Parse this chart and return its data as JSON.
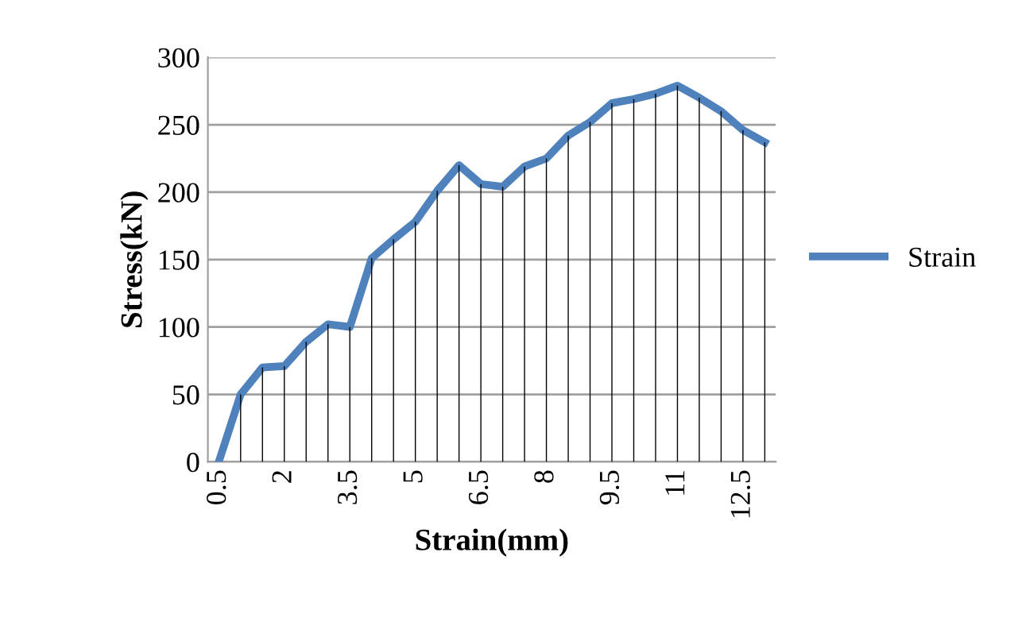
{
  "chart_data": {
    "type": "line",
    "xlabel": "Strain(mm)",
    "ylabel": "Stress(kN)",
    "categories": [
      "0.5",
      null,
      null,
      "2",
      null,
      null,
      "3.5",
      null,
      null,
      "5",
      null,
      null,
      "6.5",
      null,
      null,
      "8",
      null,
      null,
      "9.5",
      null,
      null,
      "11",
      null,
      null,
      "12.5",
      null
    ],
    "series": [
      {
        "type": "bar",
        "color": "#000000",
        "values": [
          0,
          50,
          70,
          71,
          89,
          102,
          100,
          151,
          165,
          178,
          201,
          220,
          206,
          204,
          219,
          225,
          242,
          252,
          266,
          269,
          273,
          279,
          270,
          260,
          246,
          237
        ]
      },
      {
        "name": "Strain",
        "color": "#4f81bd",
        "values": [
          0,
          50,
          70,
          71,
          89,
          102,
          100,
          151,
          165,
          178,
          201,
          220,
          206,
          204,
          219,
          225,
          242,
          252,
          266,
          269,
          273,
          279,
          270,
          260,
          246,
          237
        ]
      }
    ],
    "ylim": [
      0,
      300
    ],
    "yticks": [
      0,
      50,
      100,
      150,
      200,
      250,
      300
    ],
    "grid": "y",
    "legend": "right",
    "marker": "none",
    "line_style": "solid"
  }
}
